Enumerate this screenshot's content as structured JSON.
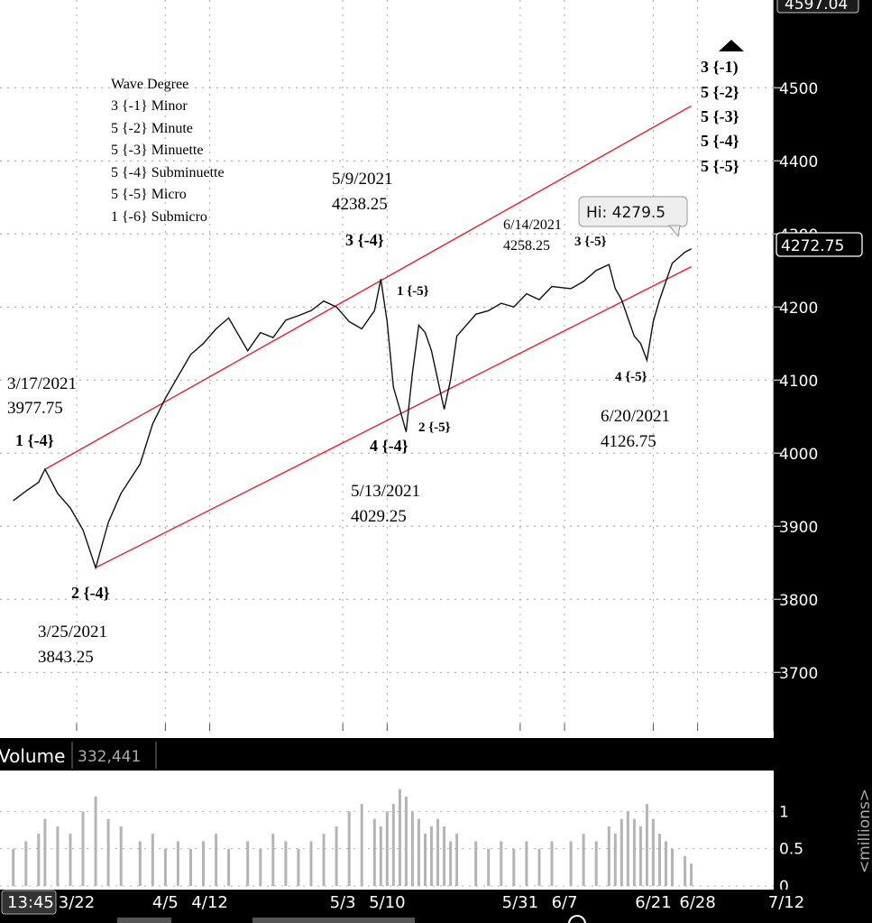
{
  "volume_panel": {
    "label": "Volume",
    "value": "332,441",
    "unit": "<millions>"
  },
  "time_badge": "13:45",
  "price_axis": {
    "ticks": [
      3700,
      3800,
      3900,
      4000,
      4100,
      4200,
      4300,
      4400,
      4500
    ],
    "top_partial": "4597.04",
    "last_price": "4272.75"
  },
  "volume_axis": {
    "ticks": [
      "1",
      "0.5",
      "0"
    ]
  },
  "x_axis": {
    "ticks": [
      "3/22",
      "4/5",
      "4/12",
      "5/3",
      "5/10",
      "5/31",
      "6/7",
      "6/21",
      "6/28",
      "7/12"
    ]
  },
  "tooltip": "Hi: 4279.5",
  "legend": {
    "title": "Wave Degree",
    "items": [
      "3 {-1} Minor",
      "5 {-2} Minute",
      "5 {-3} Minuette",
      "5 {-4} Subminuette",
      "5 {-5} Micro",
      "1 {-6} Submicro"
    ]
  },
  "wave_stack": [
    "3 {-1)",
    "5 {-2}",
    "5 {-3}",
    "5 {-4}",
    "5 {-5}"
  ],
  "pivots": [
    {
      "date": "3/17/2021",
      "price": "3977.75",
      "wave": "1 {-4}"
    },
    {
      "date": "3/25/2021",
      "price": "3843.25",
      "wave": "2 {-4}"
    },
    {
      "date": "5/9/2021",
      "price": "4238.25",
      "wave": "3 {-4}"
    },
    {
      "date": "5/13/2021",
      "price": "4029.25",
      "wave": "4 {-4}"
    },
    {
      "date": "6/14/2021",
      "price": "4258.25",
      "wave": "3 {-5}"
    },
    {
      "date": "6/20/2021",
      "price": "4126.75",
      "wave": "4 {-5}"
    }
  ],
  "sub_waves": [
    "1 {-5}",
    "2 {-5}"
  ],
  "chart_data": {
    "type": "line",
    "price_scale": {
      "ylim": [
        3620,
        4620
      ]
    },
    "volume_scale": {
      "ylim": [
        0,
        1.5
      ]
    },
    "x": [
      "3/12",
      "3/14",
      "3/16",
      "3/17",
      "3/19",
      "3/21",
      "3/23",
      "3/25",
      "3/27",
      "3/29",
      "4/1",
      "4/3",
      "4/5",
      "4/7",
      "4/9",
      "4/11",
      "4/13",
      "4/15",
      "4/18",
      "4/20",
      "4/22",
      "4/24",
      "4/26",
      "4/28",
      "4/30",
      "5/2",
      "5/4",
      "5/6",
      "5/8",
      "5/9",
      "5/10",
      "5/11",
      "5/12",
      "5/13",
      "5/14",
      "5/15",
      "5/16",
      "5/17",
      "5/18",
      "5/19",
      "5/20",
      "5/21",
      "5/24",
      "5/26",
      "5/28",
      "5/30",
      "6/1",
      "6/3",
      "6/5",
      "6/8",
      "6/10",
      "6/12",
      "6/14",
      "6/15",
      "6/16",
      "6/17",
      "6/18",
      "6/19",
      "6/20",
      "6/21",
      "6/22",
      "6/23",
      "6/24",
      "6/26",
      "6/27"
    ],
    "series": [
      {
        "values": [
          3935,
          3948,
          3960,
          3978,
          3945,
          3925,
          3895,
          3843,
          3905,
          3945,
          3985,
          4040,
          4075,
          4105,
          4135,
          4150,
          4170,
          4185,
          4140,
          4165,
          4158,
          4182,
          4188,
          4195,
          4208,
          4200,
          4180,
          4170,
          4195,
          4238,
          4180,
          4090,
          4060,
          4029,
          4110,
          4175,
          4165,
          4140,
          4100,
          4060,
          4100,
          4160,
          4190,
          4195,
          4205,
          4200,
          4218,
          4210,
          4228,
          4225,
          4235,
          4250,
          4258,
          4225,
          4210,
          4185,
          4160,
          4150,
          4127,
          4180,
          4210,
          4235,
          4260,
          4275,
          4279.5
        ]
      }
    ],
    "volume": [
      0.5,
      0.6,
      0.7,
      0.9,
      0.8,
      0.7,
      1.0,
      1.2,
      0.9,
      0.8,
      0.6,
      0.7,
      0.5,
      0.6,
      0.5,
      0.6,
      0.7,
      0.5,
      0.6,
      0.5,
      0.7,
      0.6,
      0.5,
      0.6,
      0.7,
      0.8,
      1.0,
      1.1,
      0.9,
      0.8,
      1.0,
      1.1,
      1.3,
      1.2,
      1.0,
      0.9,
      0.7,
      0.8,
      0.9,
      0.8,
      0.6,
      0.7,
      0.6,
      0.5,
      0.6,
      0.5,
      0.6,
      0.5,
      0.6,
      0.6,
      0.7,
      0.6,
      0.8,
      0.7,
      0.9,
      1.0,
      0.9,
      0.8,
      1.1,
      0.9,
      0.7,
      0.6,
      0.5,
      0.4,
      0.3
    ],
    "trendlines": [
      {
        "from": [
          "3/17",
          3977.75
        ],
        "to": [
          "6/27",
          4475
        ]
      },
      {
        "from": [
          "3/25",
          3843.25
        ],
        "to": [
          "6/27",
          4255
        ]
      }
    ]
  }
}
